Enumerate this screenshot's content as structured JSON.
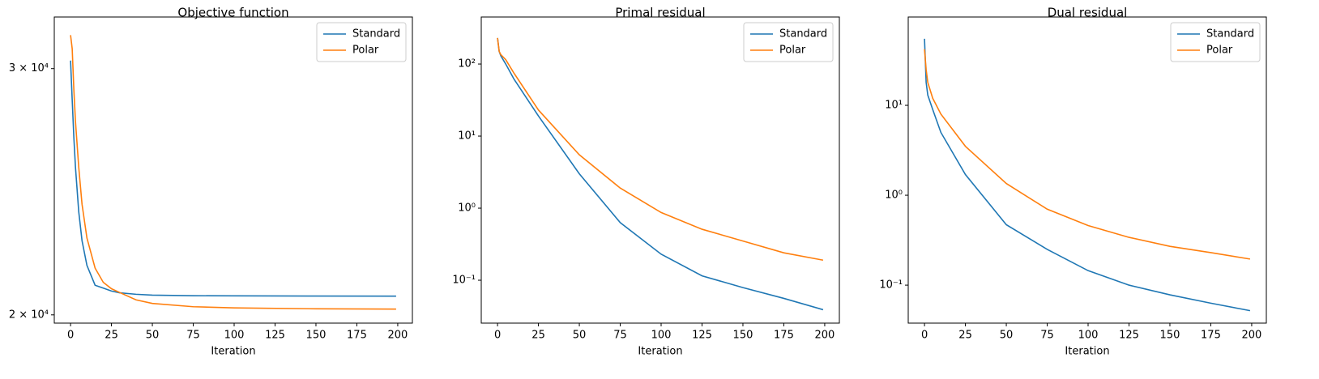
{
  "chart_data": [
    {
      "type": "line",
      "title": "Objective function",
      "x_label": "Iteration",
      "yscale": "log",
      "legend": "upper right",
      "x": [
        0,
        1,
        2,
        3,
        5,
        7,
        10,
        15,
        20,
        25,
        30,
        40,
        50,
        75,
        100,
        150,
        199
      ],
      "series": [
        {
          "name": "Standard",
          "color": "#1f77b4",
          "values": [
            30400,
            28500,
            26800,
            25500,
            23700,
            22600,
            21700,
            21000,
            20900,
            20800,
            20740,
            20690,
            20660,
            20640,
            20635,
            20630,
            20625
          ]
        },
        {
          "name": "Polar",
          "color": "#ff7f0e",
          "values": [
            31700,
            31000,
            29000,
            27500,
            25500,
            24000,
            22700,
            21600,
            21100,
            20880,
            20750,
            20500,
            20380,
            20270,
            20230,
            20200,
            20190
          ]
        }
      ],
      "xlim": [
        -9.95,
        208.95
      ],
      "xticks": [
        0,
        25,
        50,
        75,
        100,
        125,
        150,
        175,
        200
      ],
      "ylim": [
        19730,
        32660
      ],
      "yticks": [
        {
          "value": 20000,
          "label": "2 × 10⁴"
        },
        {
          "value": 30000,
          "label": "3 × 10⁴"
        }
      ]
    },
    {
      "type": "line",
      "title": "Primal residual",
      "x_label": "Iteration",
      "yscale": "log",
      "legend": "upper right",
      "x": [
        0,
        1,
        2,
        5,
        10,
        25,
        50,
        75,
        100,
        125,
        150,
        175,
        199
      ],
      "series": [
        {
          "name": "Standard",
          "color": "#1f77b4",
          "values": [
            230,
            150,
            130,
            100,
            62,
            19,
            3.0,
            0.63,
            0.23,
            0.115,
            0.079,
            0.056,
            0.039
          ]
        },
        {
          "name": "Polar",
          "color": "#ff7f0e",
          "values": [
            230,
            150,
            135,
            115,
            75,
            23,
            5.5,
            1.9,
            0.87,
            0.51,
            0.35,
            0.24,
            0.19
          ]
        }
      ],
      "xlim": [
        -9.95,
        208.95
      ],
      "xticks": [
        0,
        25,
        50,
        75,
        100,
        125,
        150,
        175,
        200
      ],
      "ylim": [
        0.0254,
        449
      ],
      "yticks": [
        {
          "value": 0.1,
          "label": "10⁻¹"
        },
        {
          "value": 1,
          "label": "10⁰"
        },
        {
          "value": 10,
          "label": "10¹"
        },
        {
          "value": 100,
          "label": "10²"
        }
      ]
    },
    {
      "type": "line",
      "title": "Dual residual",
      "x_label": "Iteration",
      "yscale": "log",
      "legend": "upper right",
      "x": [
        0,
        1,
        2,
        5,
        10,
        25,
        50,
        75,
        100,
        125,
        150,
        175,
        199
      ],
      "series": [
        {
          "name": "Standard",
          "color": "#1f77b4",
          "values": [
            55,
            18,
            13,
            9,
            5,
            1.7,
            0.47,
            0.25,
            0.145,
            0.1,
            0.078,
            0.063,
            0.052
          ]
        },
        {
          "name": "Polar",
          "color": "#ff7f0e",
          "values": [
            42,
            25,
            18,
            12,
            8,
            3.5,
            1.35,
            0.7,
            0.46,
            0.34,
            0.27,
            0.23,
            0.195
          ]
        }
      ],
      "xlim": [
        -9.95,
        208.95
      ],
      "xticks": [
        0,
        25,
        50,
        75,
        100,
        125,
        150,
        175,
        200
      ],
      "ylim": [
        0.0378,
        96
      ],
      "yticks": [
        {
          "value": 0.1,
          "label": "10⁻¹"
        },
        {
          "value": 1,
          "label": "10⁰"
        },
        {
          "value": 10,
          "label": "10¹"
        }
      ]
    }
  ]
}
